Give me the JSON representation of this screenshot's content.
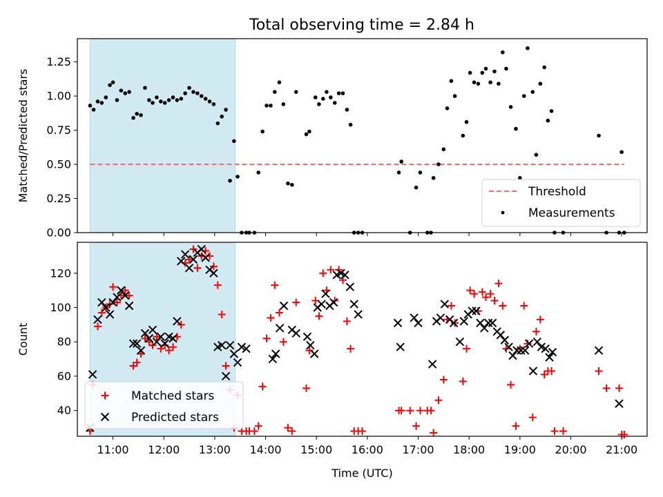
{
  "figure": {
    "title": "Total observing time = 2.84 h"
  },
  "colors": {
    "span": "#add8e6",
    "threshold": "#ff6b6b",
    "measurement": "#000000",
    "matched": "#ff0000",
    "predicted": "#000000"
  },
  "chart_data": [
    {
      "type": "scatter",
      "ylabel": "Matched/Predicted stars",
      "ylim": [
        0,
        1.42
      ],
      "xlim": [
        10.3,
        21.5
      ],
      "yticks": [
        "0.00",
        "0.25",
        "0.50",
        "0.75",
        "1.00",
        "1.25"
      ],
      "observing_span": [
        10.55,
        13.4
      ],
      "threshold": {
        "name": "Threshold",
        "value": 0.5,
        "x": [
          10.55,
          21.05
        ]
      },
      "legend_position": "lower right",
      "series": [
        {
          "name": "Measurements",
          "x": [
            10.55,
            10.62,
            10.7,
            10.78,
            10.86,
            10.94,
            11.0,
            11.08,
            11.16,
            11.24,
            11.32,
            11.4,
            11.47,
            11.55,
            11.63,
            11.71,
            11.78,
            11.86,
            11.94,
            12.02,
            12.1,
            12.18,
            12.26,
            12.34,
            12.42,
            12.5,
            12.58,
            12.66,
            12.74,
            12.82,
            12.9,
            12.98,
            13.06,
            13.14,
            13.22,
            13.3,
            13.38,
            13.45,
            13.53,
            13.62,
            13.68,
            13.78,
            13.86,
            13.94,
            14.02,
            14.1,
            14.18,
            14.27,
            14.35,
            14.44,
            14.52,
            14.6,
            14.8,
            14.86,
            14.98,
            15.05,
            15.13,
            15.2,
            15.28,
            15.36,
            15.44,
            15.52,
            15.6,
            15.67,
            15.74,
            15.82,
            15.9,
            16.62,
            16.67,
            16.84,
            16.96,
            17.04,
            17.18,
            17.25,
            17.3,
            17.4,
            17.5,
            17.57,
            17.65,
            17.72,
            17.88,
            17.95,
            18.02,
            18.1,
            18.18,
            18.26,
            18.33,
            18.42,
            18.5,
            18.58,
            18.66,
            18.73,
            18.82,
            18.92,
            19.0,
            19.08,
            19.15,
            19.25,
            19.32,
            19.4,
            19.48,
            19.55,
            19.62,
            19.68,
            19.85,
            20.55,
            20.7,
            20.95,
            21.0,
            21.05
          ],
          "y": [
            0.93,
            0.9,
            0.96,
            0.95,
            0.99,
            1.08,
            1.1,
            0.97,
            1.04,
            1.02,
            1.03,
            0.84,
            0.87,
            0.86,
            1.06,
            0.97,
            0.95,
            0.99,
            0.96,
            0.95,
            0.97,
            0.99,
            0.97,
            0.98,
            1.02,
            1.06,
            1.03,
            1.02,
            1.0,
            0.98,
            0.96,
            0.94,
            0.8,
            0.85,
            0.9,
            0.38,
            0.67,
            0.41,
            0.0,
            0.0,
            0.0,
            0.0,
            0.44,
            0.74,
            0.93,
            0.93,
            1.03,
            1.1,
            0.94,
            0.36,
            0.35,
            1.03,
            0.72,
            0.74,
            0.99,
            0.94,
            0.98,
            1.03,
            0.99,
            0.95,
            1.02,
            1.02,
            0.9,
            0.79,
            0.0,
            0.0,
            0.0,
            0.44,
            0.52,
            0.0,
            0.33,
            0.44,
            0.0,
            0.0,
            0.4,
            0.5,
            0.61,
            0.91,
            1.11,
            1.0,
            0.71,
            0.81,
            1.17,
            1.1,
            1.09,
            1.17,
            1.2,
            1.1,
            1.18,
            1.09,
            1.32,
            1.2,
            0.92,
            0.76,
            0.4,
            1.0,
            1.35,
            1.03,
            0.57,
            1.09,
            1.21,
            0.82,
            0.89,
            0.0,
            0.0,
            0.71,
            0.0,
            0.0,
            0.59,
            0.0
          ]
        }
      ]
    },
    {
      "type": "scatter",
      "xlabel": "Time (UTC)",
      "ylabel": "Count",
      "ylim": [
        25,
        138
      ],
      "xlim": [
        10.3,
        21.5
      ],
      "yticks": [
        "40",
        "60",
        "80",
        "100",
        "120"
      ],
      "xticks": [
        "11:00",
        "12:00",
        "13:00",
        "14:00",
        "15:00",
        "16:00",
        "17:00",
        "18:00",
        "19:00",
        "20:00",
        "21:00"
      ],
      "observing_span": [
        10.55,
        13.4
      ],
      "legend_position": "lower left",
      "series": [
        {
          "name": "Matched stars",
          "x": [
            10.55,
            10.6,
            10.7,
            10.78,
            10.86,
            10.94,
            11.0,
            11.08,
            11.16,
            11.24,
            11.32,
            11.4,
            11.47,
            11.55,
            11.63,
            11.71,
            11.78,
            11.86,
            11.94,
            12.02,
            12.1,
            12.18,
            12.26,
            12.34,
            12.42,
            12.5,
            12.58,
            12.66,
            12.74,
            12.82,
            12.9,
            12.98,
            13.06,
            13.14,
            13.22,
            13.3,
            13.38,
            13.45,
            13.53,
            13.62,
            13.68,
            13.78,
            13.86,
            13.94,
            14.02,
            14.1,
            14.18,
            14.27,
            14.35,
            14.44,
            14.52,
            14.6,
            14.8,
            14.86,
            14.98,
            15.05,
            15.13,
            15.2,
            15.28,
            15.36,
            15.44,
            15.52,
            15.6,
            15.67,
            15.74,
            15.82,
            15.9,
            16.62,
            16.67,
            16.84,
            16.96,
            17.04,
            17.18,
            17.25,
            17.3,
            17.4,
            17.5,
            17.57,
            17.65,
            17.72,
            17.88,
            17.95,
            18.02,
            18.1,
            18.18,
            18.26,
            18.33,
            18.42,
            18.5,
            18.58,
            18.66,
            18.73,
            18.82,
            18.92,
            19.0,
            19.08,
            19.15,
            19.25,
            19.32,
            19.4,
            19.48,
            19.55,
            19.62,
            19.68,
            19.85,
            20.55,
            20.7,
            20.95,
            21.0,
            21.05
          ],
          "y": [
            28,
            55,
            89,
            97,
            100,
            102,
            112,
            103,
            107,
            110,
            107,
            66,
            68,
            73,
            82,
            80,
            78,
            83,
            76,
            78,
            75,
            77,
            83,
            90,
            126,
            128,
            134,
            123,
            130,
            133,
            130,
            124,
            113,
            96,
            66,
            52,
            30,
            49,
            28,
            28,
            28,
            28,
            31,
            54,
            82,
            94,
            113,
            97,
            80,
            30,
            28,
            103,
            53,
            75,
            104,
            95,
            120,
            110,
            122,
            104,
            122,
            116,
            92,
            76,
            28,
            28,
            28,
            40,
            40,
            40,
            31,
            40,
            40,
            40,
            27,
            46,
            58,
            93,
            101,
            91,
            57,
            76,
            110,
            108,
            98,
            109,
            106,
            108,
            104,
            114,
            101,
            76,
            55,
            31,
            76,
            101,
            79,
            36,
            86,
            93,
            61,
            63,
            63,
            28,
            28,
            63,
            53,
            53,
            26,
            26
          ]
        },
        {
          "name": "Predicted stars",
          "x": [
            10.55,
            10.6,
            10.7,
            10.78,
            10.86,
            10.94,
            11.0,
            11.08,
            11.16,
            11.24,
            11.32,
            11.4,
            11.47,
            11.55,
            11.63,
            11.71,
            11.78,
            11.86,
            11.94,
            12.02,
            12.1,
            12.18,
            12.26,
            12.34,
            12.42,
            12.5,
            12.58,
            12.66,
            12.74,
            12.82,
            12.9,
            12.98,
            13.06,
            13.14,
            13.22,
            13.3,
            13.38,
            13.45,
            13.53,
            13.62,
            14.14,
            14.2,
            14.28,
            14.36,
            14.52,
            14.6,
            14.82,
            14.88,
            14.96,
            15.02,
            15.1,
            15.18,
            15.26,
            15.34,
            15.4,
            15.48,
            15.56,
            15.66,
            15.74,
            15.82,
            16.6,
            16.65,
            16.92,
            17.0,
            17.28,
            17.36,
            17.44,
            17.52,
            17.62,
            17.7,
            17.82,
            17.9,
            17.98,
            18.06,
            18.14,
            18.22,
            18.3,
            18.38,
            18.46,
            18.55,
            18.62,
            18.7,
            18.78,
            18.86,
            18.94,
            19.02,
            19.1,
            19.18,
            19.26,
            19.34,
            19.42,
            19.5,
            19.58,
            19.64,
            20.55,
            20.95
          ],
          "y": [
            30,
            61,
            93,
            103,
            100,
            96,
            103,
            106,
            110,
            107,
            101,
            79,
            79,
            75,
            85,
            82,
            87,
            80,
            83,
            79,
            83,
            82,
            92,
            127,
            131,
            123,
            128,
            132,
            134,
            129,
            122,
            120,
            77,
            78,
            60,
            78,
            73,
            68,
            77,
            76,
            70,
            73,
            88,
            101,
            87,
            85,
            83,
            78,
            73,
            100,
            102,
            108,
            101,
            103,
            119,
            120,
            119,
            112,
            102,
            96,
            91,
            77,
            94,
            91,
            67,
            92,
            94,
            102,
            93,
            91,
            80,
            92,
            96,
            98,
            98,
            91,
            88,
            91,
            91,
            86,
            84,
            81,
            77,
            72,
            75,
            75,
            75,
            79,
            63,
            80,
            77,
            76,
            71,
            74,
            75,
            44
          ]
        }
      ]
    }
  ]
}
